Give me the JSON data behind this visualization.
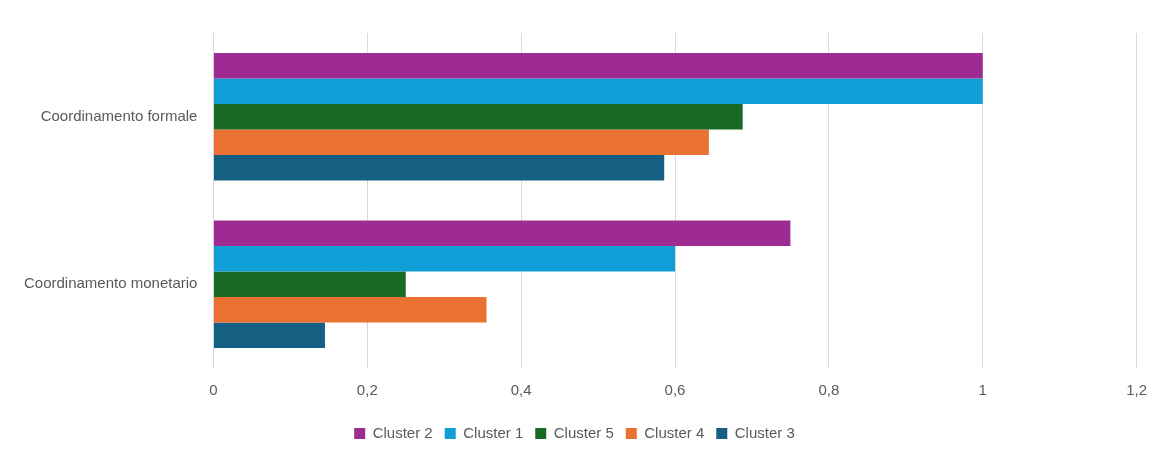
{
  "chart_data": {
    "type": "bar",
    "orientation": "horizontal",
    "categories": [
      "Coordinamento formale",
      "Coordinamento monetario"
    ],
    "series": [
      {
        "name": "Cluster 2",
        "color": "#9e2b92",
        "values": [
          1.0,
          0.75
        ]
      },
      {
        "name": "Cluster 1",
        "color": "#0f9ed5",
        "values": [
          1.0,
          0.6
        ]
      },
      {
        "name": "Cluster 5",
        "color": "#196b24",
        "values": [
          0.688,
          0.25
        ]
      },
      {
        "name": "Cluster 4",
        "color": "#e97132",
        "values": [
          0.644,
          0.355
        ]
      },
      {
        "name": "Cluster 3",
        "color": "#156082",
        "values": [
          0.586,
          0.145
        ]
      }
    ],
    "xlim": [
      0,
      1.2
    ],
    "xticks": [
      0,
      {
        "value": 0.2,
        "label": "0,2"
      },
      {
        "value": 0.4,
        "label": "0,4"
      },
      {
        "value": 0.6,
        "label": "0,6"
      },
      {
        "value": 0.8,
        "label": "0,8"
      },
      1,
      {
        "value": 1.2,
        "label": "1,2"
      }
    ],
    "grid": "x",
    "legend": "bottom"
  }
}
